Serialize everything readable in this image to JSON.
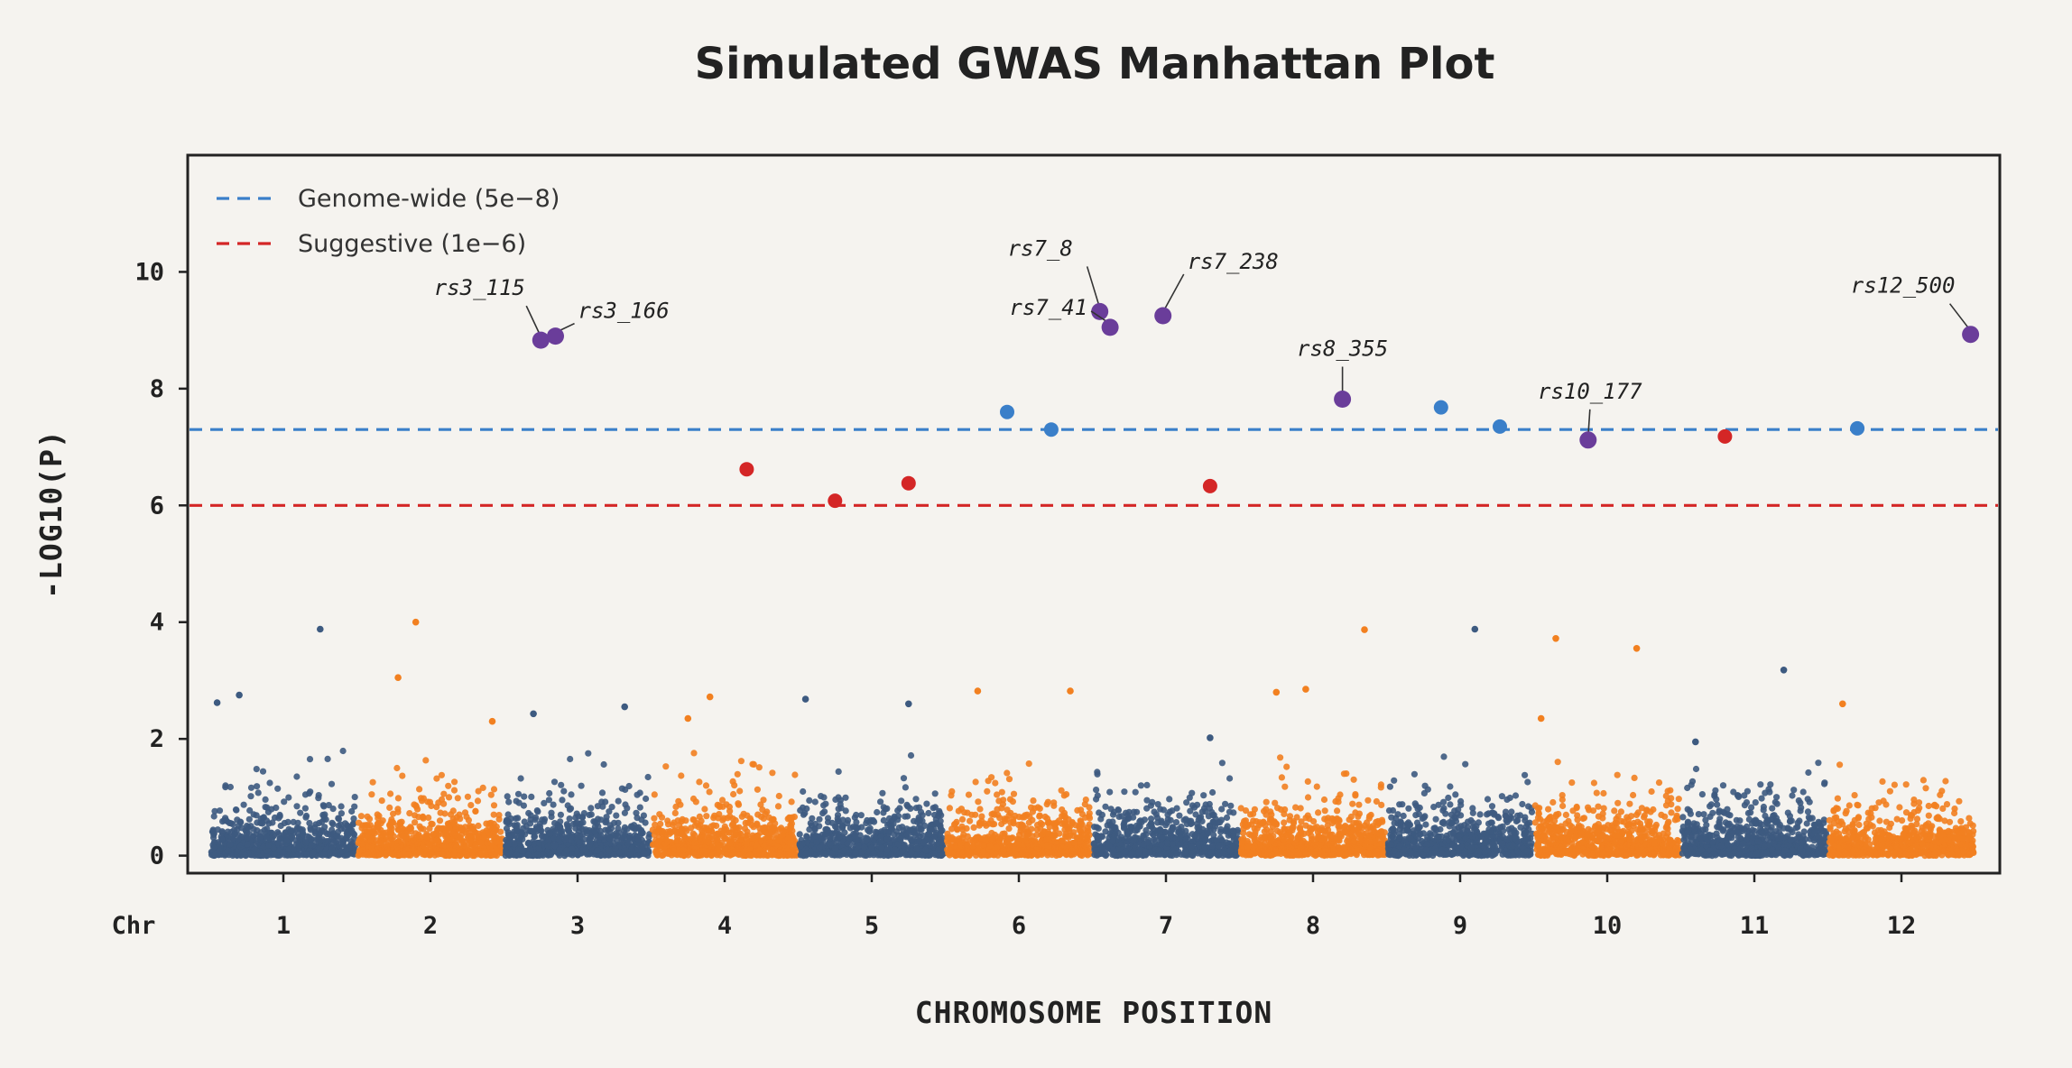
{
  "chart_data": {
    "type": "scatter",
    "title": "Simulated GWAS Manhattan Plot",
    "xlabel": "CHROMOSOME POSITION",
    "ylabel": "-LOG10(P)",
    "x_prefix_label": "Chr",
    "chromosomes": [
      "1",
      "2",
      "3",
      "4",
      "5",
      "6",
      "7",
      "8",
      "9",
      "10",
      "11",
      "12"
    ],
    "ylim": [
      -0.3,
      12
    ],
    "yticks": [
      0,
      2,
      4,
      6,
      8,
      10
    ],
    "grid": false,
    "legend_position": "top-left",
    "colors": {
      "odd_chromosome": "#3d5a80",
      "even_chromosome": "#f28020",
      "genome_wide": "#3a7fc9",
      "suggestive": "#d42626",
      "top_hit": "#6a3d9a",
      "background": "#f5f3ef",
      "frame": "#222222"
    },
    "thresholds": [
      {
        "name": "Genome-wide (5e−8)",
        "value": 7.3,
        "color": "#3a7fc9"
      },
      {
        "name": "Suggestive (1e−6)",
        "value": 6.0,
        "color": "#d42626"
      }
    ],
    "background_points": {
      "per_chromosome": 720,
      "typical_max": 1.8,
      "outliers": [
        {
          "chr": 1,
          "pos": 0.25,
          "y": 3.88
        },
        {
          "chr": 1,
          "pos": -0.3,
          "y": 2.75
        },
        {
          "chr": 1,
          "pos": -0.45,
          "y": 2.62
        },
        {
          "chr": 2,
          "pos": -0.1,
          "y": 4.0
        },
        {
          "chr": 2,
          "pos": -0.22,
          "y": 3.05
        },
        {
          "chr": 2,
          "pos": 0.42,
          "y": 2.3
        },
        {
          "chr": 3,
          "pos": -0.3,
          "y": 2.43
        },
        {
          "chr": 3,
          "pos": 0.32,
          "y": 2.55
        },
        {
          "chr": 4,
          "pos": -0.1,
          "y": 2.72
        },
        {
          "chr": 4,
          "pos": -0.25,
          "y": 2.35
        },
        {
          "chr": 5,
          "pos": -0.45,
          "y": 2.68
        },
        {
          "chr": 5,
          "pos": 0.25,
          "y": 2.6
        },
        {
          "chr": 6,
          "pos": -0.28,
          "y": 2.82
        },
        {
          "chr": 6,
          "pos": 0.35,
          "y": 2.82
        },
        {
          "chr": 7,
          "pos": 0.3,
          "y": 2.02
        },
        {
          "chr": 8,
          "pos": 0.35,
          "y": 3.87
        },
        {
          "chr": 8,
          "pos": -0.05,
          "y": 2.85
        },
        {
          "chr": 8,
          "pos": -0.25,
          "y": 2.8
        },
        {
          "chr": 9,
          "pos": 0.1,
          "y": 3.88
        },
        {
          "chr": 10,
          "pos": -0.35,
          "y": 3.72
        },
        {
          "chr": 10,
          "pos": 0.2,
          "y": 3.55
        },
        {
          "chr": 10,
          "pos": -0.45,
          "y": 2.35
        },
        {
          "chr": 11,
          "pos": -0.4,
          "y": 1.95
        },
        {
          "chr": 11,
          "pos": 0.2,
          "y": 3.18
        },
        {
          "chr": 12,
          "pos": -0.4,
          "y": 2.6
        }
      ]
    },
    "significant_points": [
      {
        "chr": 4,
        "pos": 0.15,
        "y": 6.62,
        "class": "suggestive"
      },
      {
        "chr": 5,
        "pos": -0.25,
        "y": 6.08,
        "class": "suggestive"
      },
      {
        "chr": 5,
        "pos": 0.25,
        "y": 6.38,
        "class": "suggestive"
      },
      {
        "chr": 7,
        "pos": 0.3,
        "y": 6.33,
        "class": "suggestive"
      },
      {
        "chr": 10,
        "pos": 0.8,
        "y": 7.18,
        "class": "suggestive"
      },
      {
        "chr": 6,
        "pos": -0.08,
        "y": 7.6,
        "class": "genome_wide"
      },
      {
        "chr": 6,
        "pos": 0.22,
        "y": 7.3,
        "class": "genome_wide"
      },
      {
        "chr": 9,
        "pos": -0.13,
        "y": 7.68,
        "class": "genome_wide"
      },
      {
        "chr": 9,
        "pos": 0.27,
        "y": 7.35,
        "class": "genome_wide"
      },
      {
        "chr": 12,
        "pos": -0.3,
        "y": 7.32,
        "class": "genome_wide"
      }
    ],
    "annotated_hits": [
      {
        "label": "rs3_115",
        "chr": 3,
        "pos": -0.25,
        "y": 8.83
      },
      {
        "label": "rs3_166",
        "chr": 3,
        "pos": -0.15,
        "y": 8.9
      },
      {
        "label": "rs7_8",
        "chr": 7,
        "pos": -0.45,
        "y": 9.32
      },
      {
        "label": "rs7_41",
        "chr": 7,
        "pos": -0.38,
        "y": 9.05
      },
      {
        "label": "rs7_238",
        "chr": 7,
        "pos": -0.02,
        "y": 9.25
      },
      {
        "label": "rs8_355",
        "chr": 8,
        "pos": 0.2,
        "y": 7.82
      },
      {
        "label": "rs10_177",
        "chr": 10,
        "pos": -0.13,
        "y": 7.12
      },
      {
        "label": "rs12_500",
        "chr": 12,
        "pos": 0.47,
        "y": 8.93
      }
    ]
  }
}
